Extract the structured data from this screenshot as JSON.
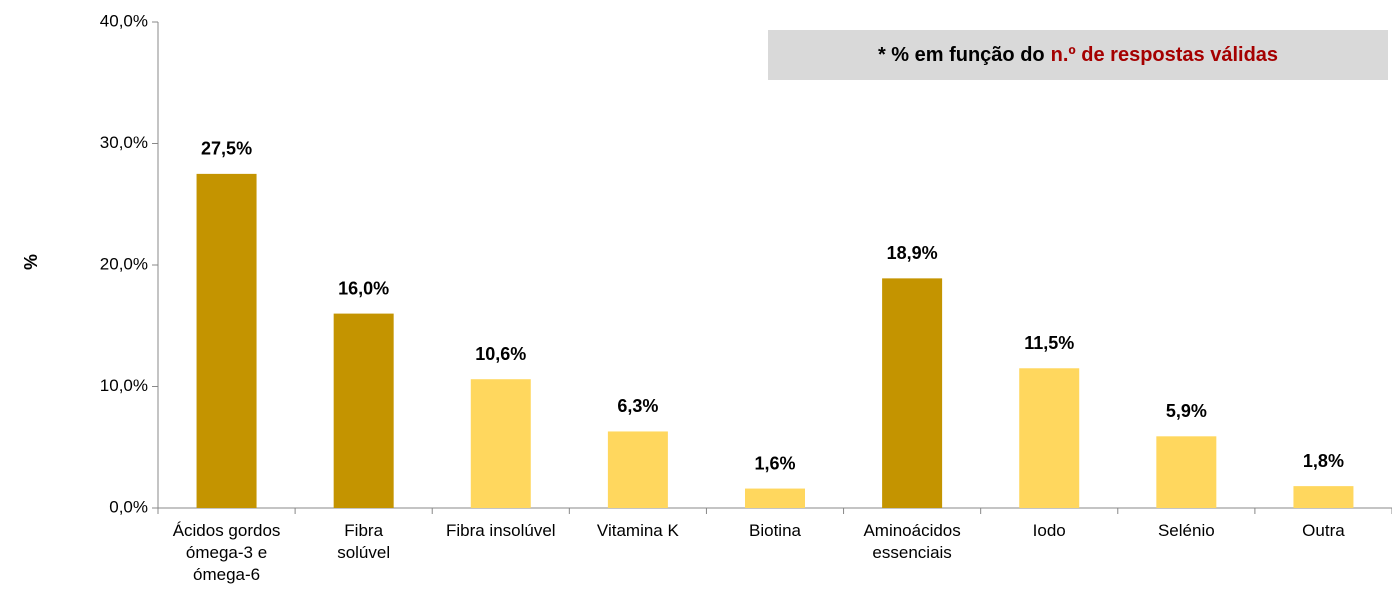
{
  "chart_data": {
    "type": "bar",
    "y_label": "%",
    "annotation": [
      "* % em função do",
      "n.º de respostas válidas"
    ],
    "categories": [
      [
        "Ácidos gordos",
        "ómega-3 e",
        "ómega-6"
      ],
      [
        "Fibra",
        "solúvel"
      ],
      [
        "Fibra insolúvel"
      ],
      [
        "Vitamina K"
      ],
      [
        "Biotina"
      ],
      [
        "Aminoácidos",
        "essenciais"
      ],
      [
        "Iodo"
      ],
      [
        "Selénio"
      ],
      [
        "Outra"
      ]
    ],
    "values": [
      27.5,
      16.0,
      10.6,
      6.3,
      1.6,
      18.9,
      11.5,
      5.9,
      1.8
    ],
    "value_labels": [
      "27,5%",
      "16,0%",
      "10,6%",
      "6,3%",
      "1,6%",
      "18,9%",
      "11,5%",
      "5,9%",
      "1,8%"
    ],
    "colors": [
      "#c49400",
      "#c49400",
      "#ffd75e",
      "#ffd75e",
      "#ffd75e",
      "#c49400",
      "#ffd75e",
      "#ffd75e",
      "#ffd75e"
    ],
    "ylim": [
      0,
      40
    ],
    "yticks": [
      {
        "value": 0,
        "label": "0,0%"
      },
      {
        "value": 10,
        "label": "10,0%"
      },
      {
        "value": 20,
        "label": "20,0%"
      },
      {
        "value": 30,
        "label": "30,0%"
      },
      {
        "value": 40,
        "label": "40,0%"
      }
    ],
    "grid": false
  }
}
